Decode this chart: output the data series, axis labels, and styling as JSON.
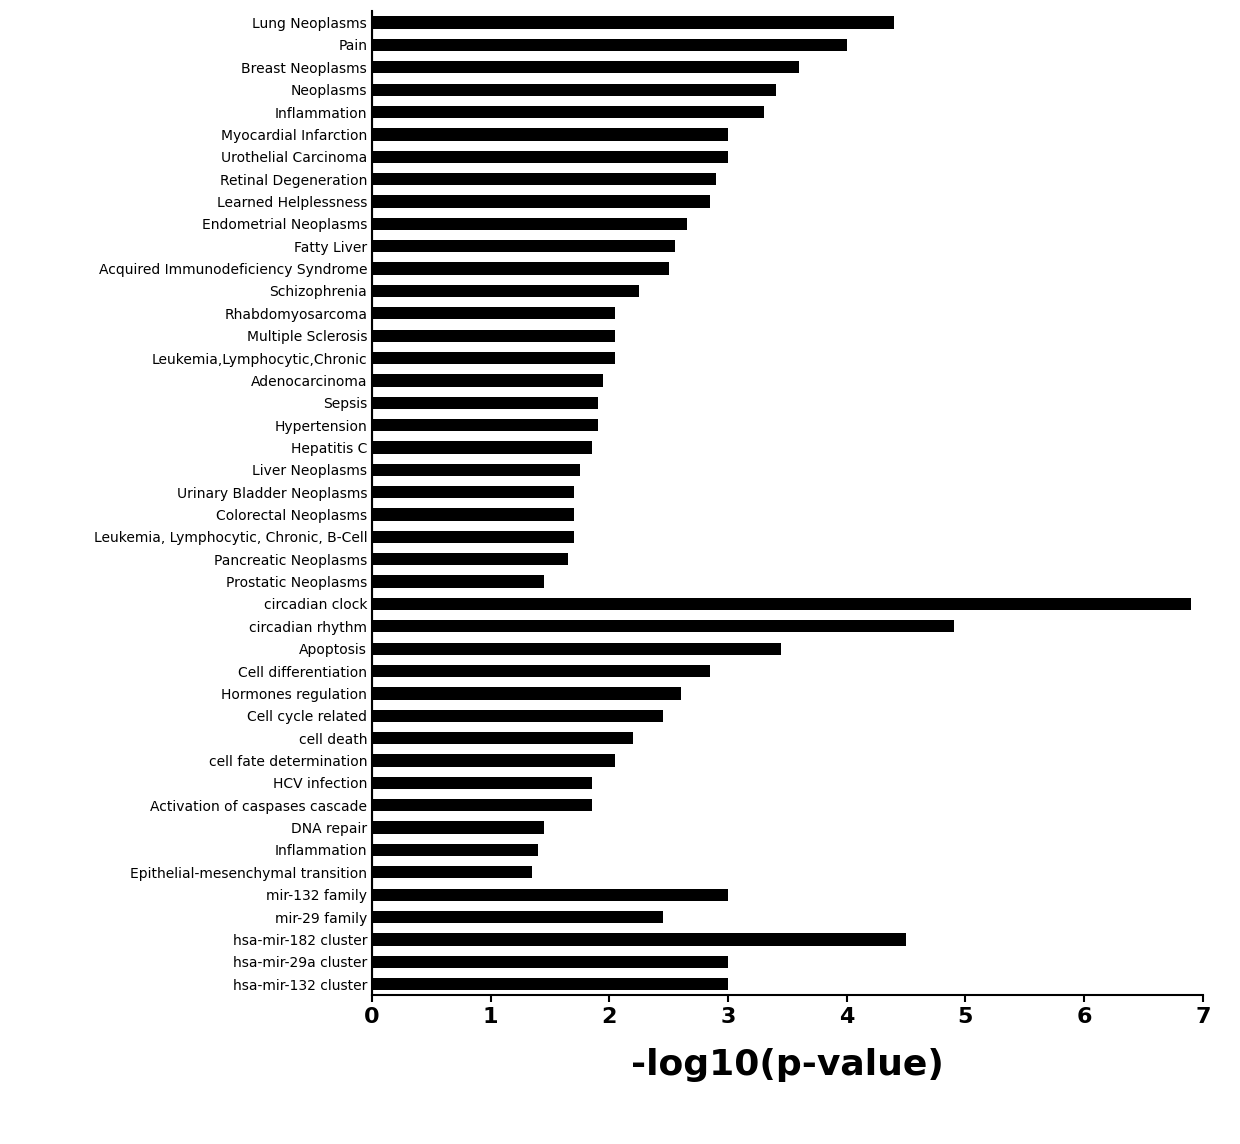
{
  "categories": [
    "Lung Neoplasms",
    "Pain",
    "Breast Neoplasms",
    "Neoplasms",
    "Inflammation",
    "Myocardial Infarction",
    "Urothelial Carcinoma",
    "Retinal Degeneration",
    "Learned Helplessness",
    "Endometrial Neoplasms",
    "Fatty Liver",
    "Acquired Immunodeficiency Syndrome",
    "Schizophrenia",
    "Rhabdomyosarcoma",
    "Multiple Sclerosis",
    "Leukemia,Lymphocytic,Chronic",
    "Adenocarcinoma",
    "Sepsis",
    "Hypertension",
    "Hepatitis C",
    "Liver Neoplasms",
    "Urinary Bladder Neoplasms",
    "Colorectal Neoplasms",
    "Leukemia, Lymphocytic, Chronic, B-Cell",
    "Pancreatic Neoplasms",
    "Prostatic Neoplasms",
    "circadian clock",
    "circadian rhythm",
    "Apoptosis",
    "Cell differentiation",
    "Hormones regulation",
    "Cell cycle related",
    "cell death",
    "cell fate determination",
    "HCV infection",
    "Activation of caspases cascade",
    "DNA repair",
    "Inflammation",
    "Epithelial-mesenchymal transition",
    "mir-132 family",
    "mir-29 family",
    "hsa-mir-182 cluster",
    "hsa-mir-29a cluster",
    "hsa-mir-132 cluster"
  ],
  "values": [
    4.4,
    4.0,
    3.6,
    3.4,
    3.3,
    3.0,
    3.0,
    2.9,
    2.85,
    2.65,
    2.55,
    2.5,
    2.25,
    2.05,
    2.05,
    2.05,
    1.95,
    1.9,
    1.9,
    1.85,
    1.75,
    1.7,
    1.7,
    1.7,
    1.65,
    1.45,
    6.9,
    4.9,
    3.45,
    2.85,
    2.6,
    2.45,
    2.2,
    2.05,
    1.85,
    1.85,
    1.45,
    1.4,
    1.35,
    3.0,
    2.45,
    4.5,
    3.0,
    3.0
  ],
  "bar_color": "#000000",
  "background_color": "#ffffff",
  "xlabel": "-log10(p-value)",
  "xlim": [
    0,
    7
  ],
  "xticks": [
    0,
    1,
    2,
    3,
    4,
    5,
    6,
    7
  ],
  "xlabel_fontsize": 26,
  "tick_fontsize": 16,
  "label_fontsize": 12,
  "bar_height": 0.55
}
